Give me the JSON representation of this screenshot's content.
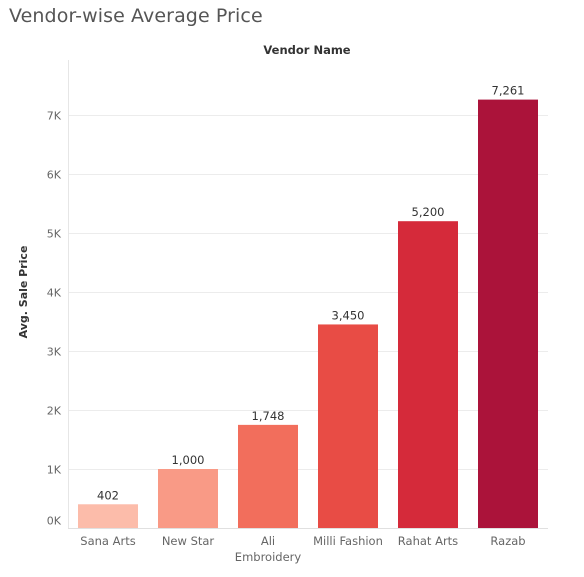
{
  "title": "Vendor-wise Average Price",
  "chart_data": {
    "type": "bar",
    "title": "Vendor-wise Average Price",
    "column_header": "Vendor Name",
    "xlabel": "",
    "ylabel": "Avg. Sale Price",
    "categories": [
      "Sana Arts",
      "New Star",
      "Ali Embroidery",
      "Milli Fashion",
      "Rahat Arts",
      "Razab"
    ],
    "values": [
      402,
      1000,
      1748,
      3450,
      5200,
      7261
    ],
    "data_labels": [
      "402",
      "1,000",
      "1,748",
      "3,450",
      "5,200",
      "7,261"
    ],
    "colors": [
      "#fcbcaa",
      "#f99a86",
      "#f26e5c",
      "#e84c45",
      "#d52a3a",
      "#ab133a"
    ],
    "ylim": [
      0,
      7000
    ],
    "y_ticks": [
      0,
      1000,
      2000,
      3000,
      4000,
      5000,
      6000,
      7000
    ],
    "y_tick_labels": [
      "0K",
      "1K",
      "2K",
      "3K",
      "4K",
      "5K",
      "6K",
      "7K"
    ],
    "grid": true,
    "legend": "none"
  }
}
